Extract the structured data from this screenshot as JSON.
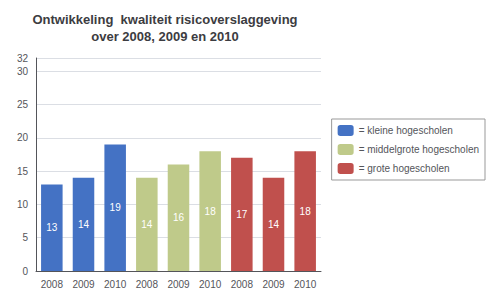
{
  "chart_data": {
    "type": "bar",
    "title": "Ontwikkeling  kwaliteit risicoverslaggeving\nover 2008, 2009 en 2010",
    "categories": [
      "2008",
      "2009",
      "2010",
      "2008",
      "2009",
      "2010",
      "2008",
      "2009",
      "2010"
    ],
    "series": [
      {
        "name": "= kleine hogescholen",
        "color": "#4472C4",
        "values": [
          13,
          14,
          19,
          null,
          null,
          null,
          null,
          null,
          null
        ]
      },
      {
        "name": "= middelgrote hogescholen",
        "color": "#BFCA8A",
        "values": [
          null,
          null,
          null,
          14,
          16,
          18,
          null,
          null,
          null
        ]
      },
      {
        "name": "= grote hogescholen",
        "color": "#C0504D",
        "values": [
          null,
          null,
          null,
          null,
          null,
          null,
          17,
          14,
          18
        ]
      }
    ],
    "ylim": [
      0,
      32
    ],
    "yticks": [
      0,
      5,
      10,
      15,
      20,
      25,
      30
    ],
    "grid": true,
    "data_labels": true,
    "legend": "right"
  }
}
